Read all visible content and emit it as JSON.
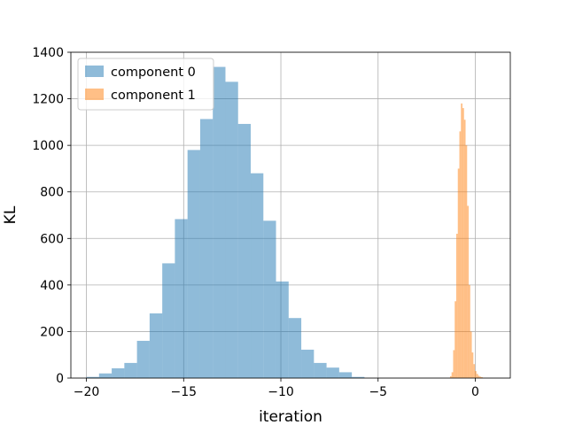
{
  "chart_data": {
    "type": "histogram",
    "xlabel": "iteration",
    "ylabel": "KL",
    "xlim": [
      -20.8,
      1.8
    ],
    "ylim": [
      0,
      1400
    ],
    "xticks": [
      -20,
      -15,
      -10,
      -5,
      0
    ],
    "xtick_labels": [
      "−20",
      "−15",
      "−10",
      "−5",
      "0"
    ],
    "yticks": [
      0,
      200,
      400,
      600,
      800,
      1000,
      1200,
      1400
    ],
    "grid": true,
    "legend": {
      "placement": "top-left"
    },
    "series": [
      {
        "name": "component 0",
        "color": "#1f77b4",
        "alpha": 0.5,
        "bins": [
          {
            "x0": -20.0,
            "x1": -19.35,
            "count": 5
          },
          {
            "x0": -19.35,
            "x1": -18.7,
            "count": 20
          },
          {
            "x0": -18.7,
            "x1": -18.05,
            "count": 42
          },
          {
            "x0": -18.05,
            "x1": -17.4,
            "count": 65
          },
          {
            "x0": -17.4,
            "x1": -16.75,
            "count": 160
          },
          {
            "x0": -16.75,
            "x1": -16.1,
            "count": 278
          },
          {
            "x0": -16.1,
            "x1": -15.45,
            "count": 493
          },
          {
            "x0": -15.45,
            "x1": -14.8,
            "count": 683
          },
          {
            "x0": -14.8,
            "x1": -14.15,
            "count": 980
          },
          {
            "x0": -14.15,
            "x1": -13.5,
            "count": 1113
          },
          {
            "x0": -13.5,
            "x1": -12.85,
            "count": 1337
          },
          {
            "x0": -12.85,
            "x1": -12.2,
            "count": 1273
          },
          {
            "x0": -12.2,
            "x1": -11.55,
            "count": 1092
          },
          {
            "x0": -11.55,
            "x1": -10.9,
            "count": 880
          },
          {
            "x0": -10.9,
            "x1": -10.25,
            "count": 676
          },
          {
            "x0": -10.25,
            "x1": -9.6,
            "count": 415
          },
          {
            "x0": -9.6,
            "x1": -8.95,
            "count": 258
          },
          {
            "x0": -8.95,
            "x1": -8.3,
            "count": 122
          },
          {
            "x0": -8.3,
            "x1": -7.65,
            "count": 65
          },
          {
            "x0": -7.65,
            "x1": -7.0,
            "count": 45
          },
          {
            "x0": -7.0,
            "x1": -6.35,
            "count": 25
          },
          {
            "x0": -6.35,
            "x1": -5.7,
            "count": 5
          }
        ]
      },
      {
        "name": "component 1",
        "color": "#ff7f0e",
        "alpha": 0.5,
        "bins": [
          {
            "x0": -1.3,
            "x1": -1.22,
            "count": 8
          },
          {
            "x0": -1.22,
            "x1": -1.14,
            "count": 25
          },
          {
            "x0": -1.14,
            "x1": -1.06,
            "count": 120
          },
          {
            "x0": -1.06,
            "x1": -0.98,
            "count": 330
          },
          {
            "x0": -0.98,
            "x1": -0.9,
            "count": 620
          },
          {
            "x0": -0.9,
            "x1": -0.82,
            "count": 900
          },
          {
            "x0": -0.82,
            "x1": -0.74,
            "count": 1060
          },
          {
            "x0": -0.74,
            "x1": -0.66,
            "count": 1180
          },
          {
            "x0": -0.66,
            "x1": -0.58,
            "count": 1160
          },
          {
            "x0": -0.58,
            "x1": -0.5,
            "count": 1110
          },
          {
            "x0": -0.5,
            "x1": -0.42,
            "count": 1000
          },
          {
            "x0": -0.42,
            "x1": -0.34,
            "count": 740
          },
          {
            "x0": -0.34,
            "x1": -0.26,
            "count": 400
          },
          {
            "x0": -0.26,
            "x1": -0.18,
            "count": 200
          },
          {
            "x0": -0.18,
            "x1": -0.1,
            "count": 110
          },
          {
            "x0": -0.1,
            "x1": -0.02,
            "count": 60
          },
          {
            "x0": -0.02,
            "x1": 0.06,
            "count": 30
          },
          {
            "x0": 0.06,
            "x1": 0.14,
            "count": 18
          },
          {
            "x0": 0.14,
            "x1": 0.22,
            "count": 10
          },
          {
            "x0": 0.22,
            "x1": 0.3,
            "count": 6
          },
          {
            "x0": 0.3,
            "x1": 0.38,
            "count": 4
          }
        ]
      }
    ]
  }
}
